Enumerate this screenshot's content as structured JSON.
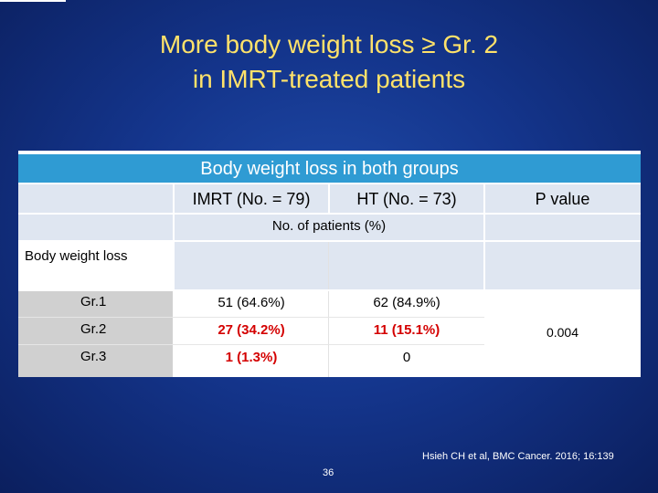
{
  "slide": {
    "title_line1": "More body weight loss ≥ Gr. 2",
    "title_line2": "in IMRT-treated patients",
    "citation": "Hsieh CH et al, BMC Cancer. 2016; 16:139",
    "page_number": "36"
  },
  "table": {
    "header": "Body weight loss in both groups",
    "columns": {
      "imrt": "IMRT (No. = 79)",
      "ht": "HT (No. = 73)",
      "pvalue": "P value"
    },
    "subheader": "No. of patients (%)",
    "row_header": "Body weight loss",
    "rows": [
      {
        "grade": "Gr.1",
        "imrt": "51 (64.6%)",
        "ht": "62 (84.9%)",
        "highlight": false
      },
      {
        "grade": "Gr.2",
        "imrt": "27 (34.2%)",
        "ht": "11 (15.1%)",
        "highlight": true
      },
      {
        "grade": "Gr.3",
        "imrt": "1 (1.3%)",
        "ht": "0",
        "highlight": "imrt-only"
      }
    ],
    "p_value": "0.004"
  },
  "colors": {
    "title": "#ffe26a",
    "header_bar": "#2f9bd3",
    "highlight": "#d40000"
  }
}
